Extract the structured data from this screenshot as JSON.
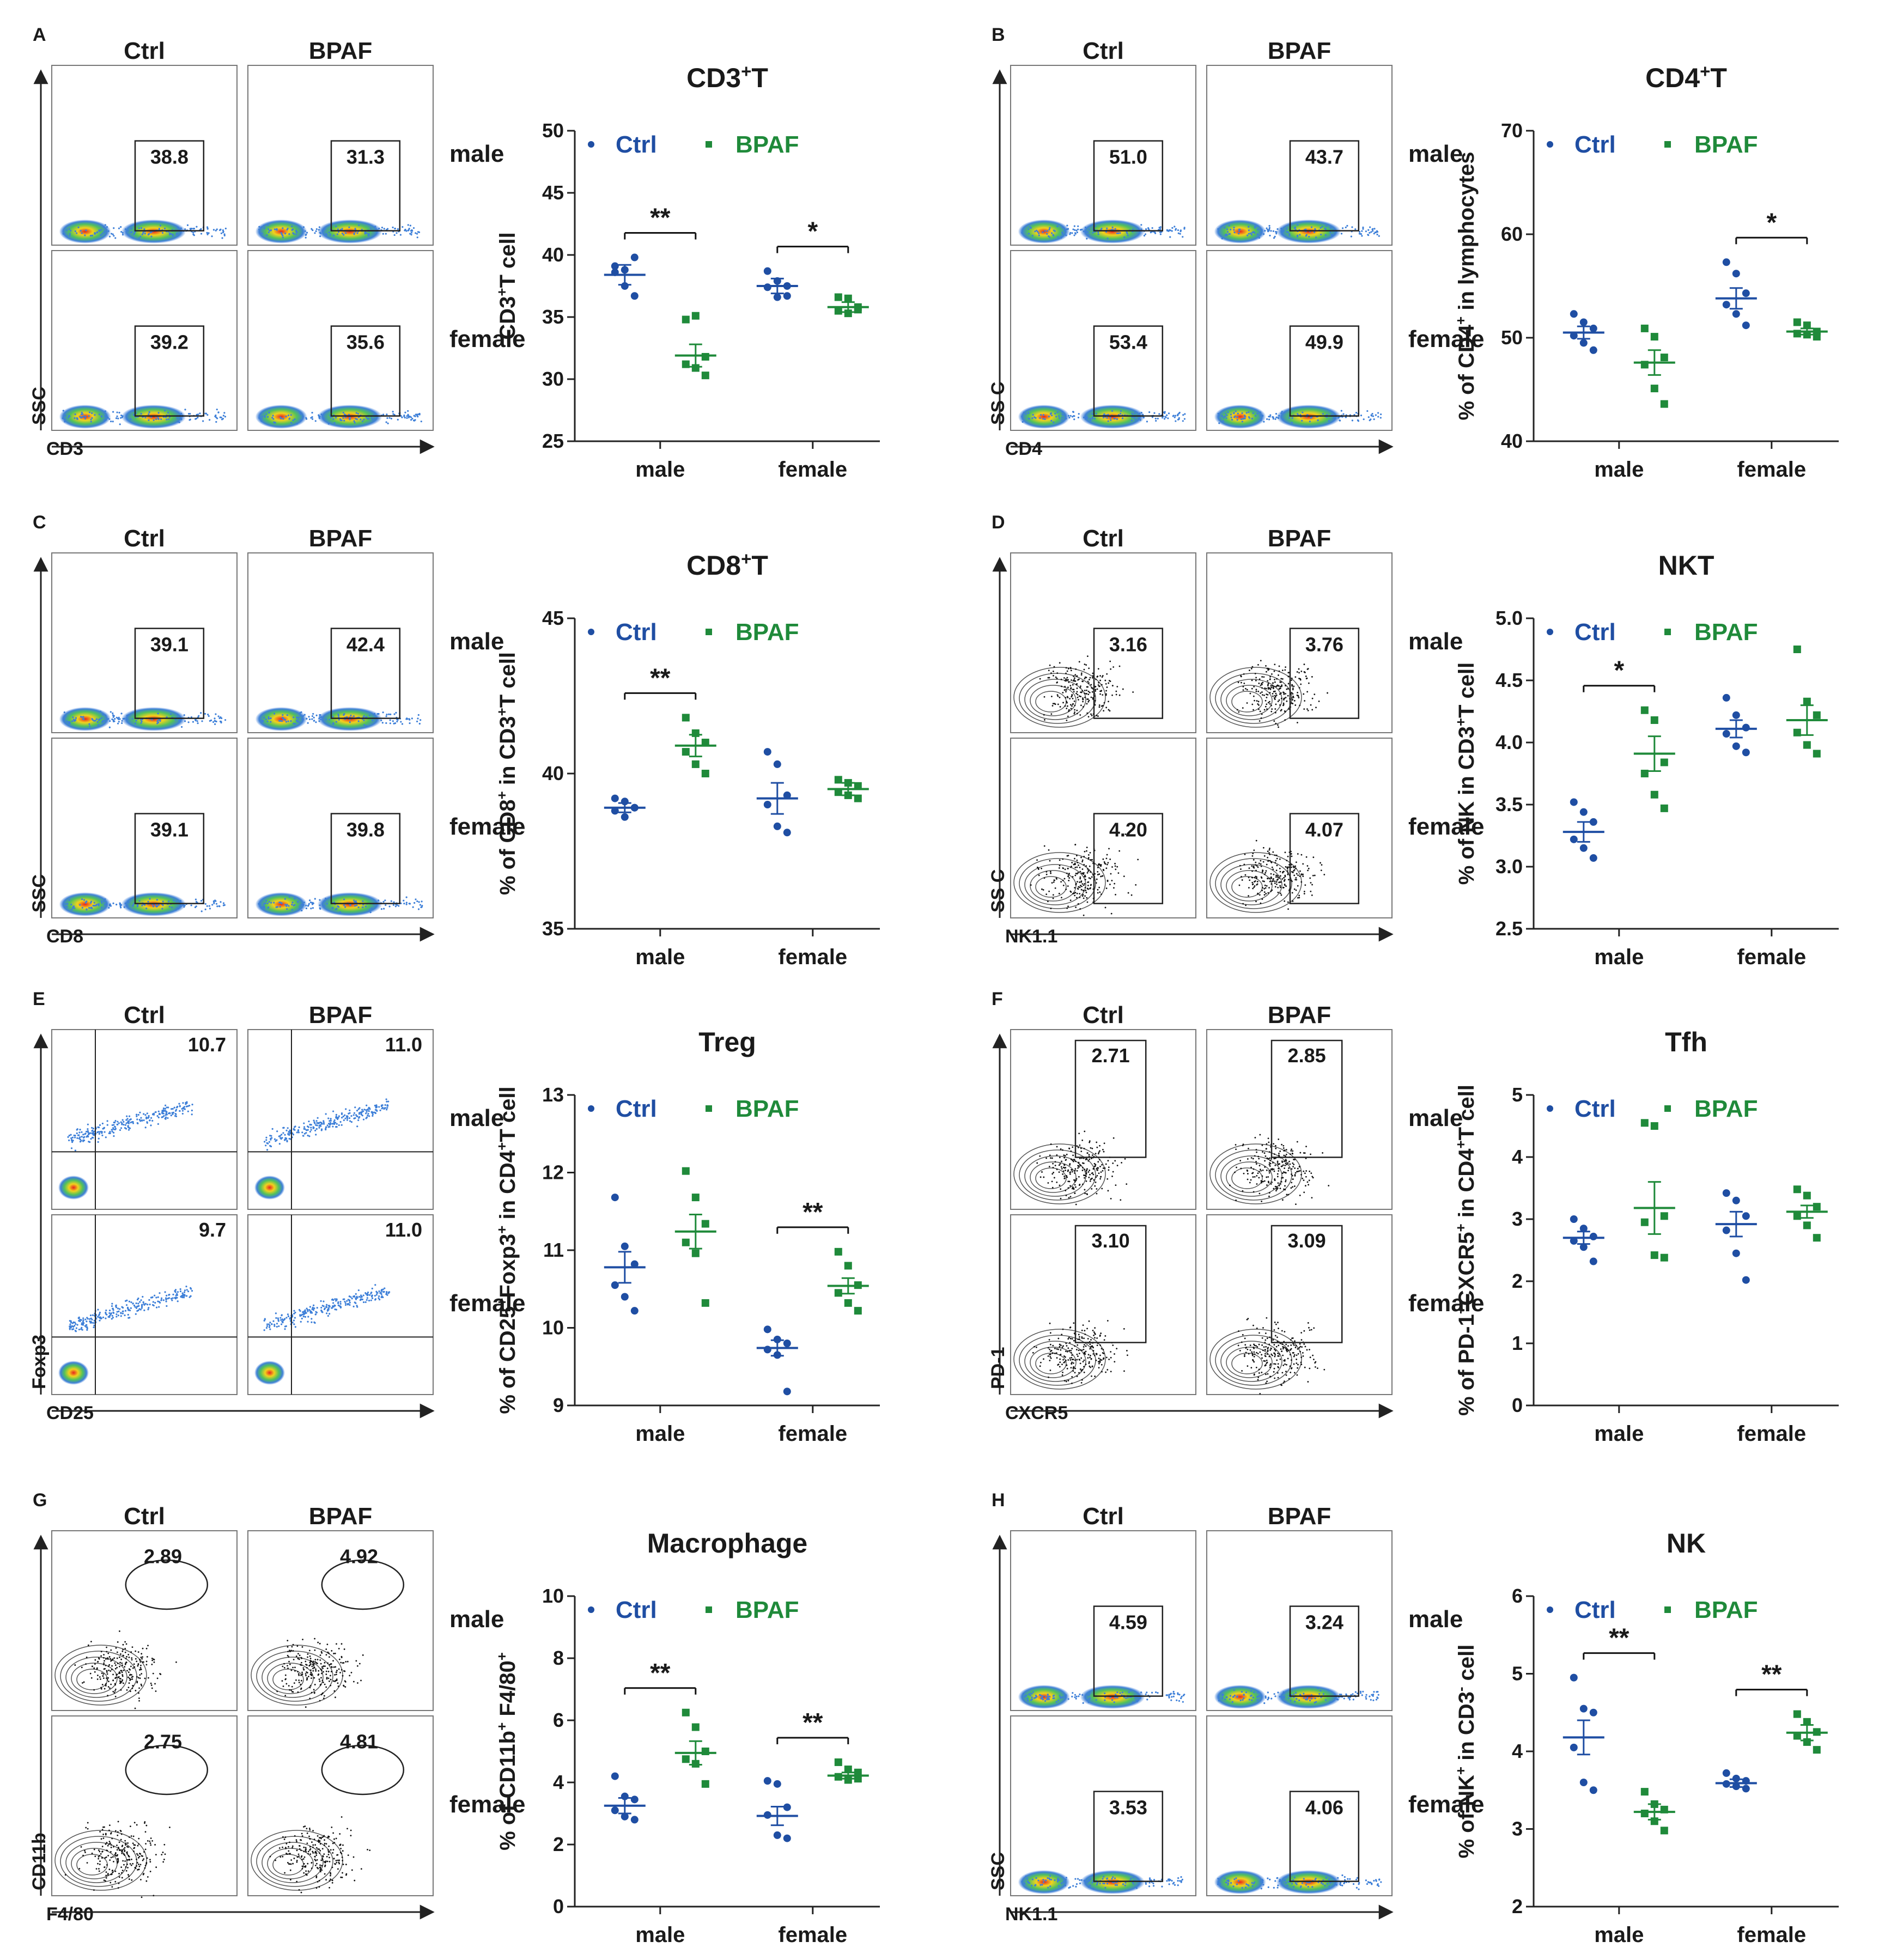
{
  "colors": {
    "ctrl": "#1f4ea3",
    "bpaf": "#1f8a3a",
    "axis": "#222222",
    "box": "#333333"
  },
  "legend": {
    "ctrl": "Ctrl",
    "bpaf": "BPAF"
  },
  "groups": [
    "male",
    "female"
  ],
  "panels": [
    {
      "letter": "A",
      "flow": {
        "col_labels": [
          "Ctrl",
          "BPAF"
        ],
        "row_labels": [
          "male",
          "female"
        ],
        "x_marker": "CD3",
        "y_marker": "SSC",
        "style": "dotplot",
        "gate": "rect",
        "values": [
          [
            "38.8",
            "31.3"
          ],
          [
            "39.2",
            "35.6"
          ]
        ]
      }
    },
    {
      "letter": "B",
      "flow": {
        "col_labels": [
          "Ctrl",
          "BPAF"
        ],
        "row_labels": [
          "male",
          "female"
        ],
        "x_marker": "CD4",
        "y_marker": "SS C",
        "style": "dotplot",
        "gate": "rect",
        "values": [
          [
            "51.0",
            "43.7"
          ],
          [
            "53.4",
            "49.9"
          ]
        ]
      }
    },
    {
      "letter": "C",
      "flow": {
        "col_labels": [
          "Ctrl",
          "BPAF"
        ],
        "row_labels": [
          "male",
          "female"
        ],
        "x_marker": "CD8",
        "y_marker": "SSC",
        "style": "dotplot",
        "gate": "rect",
        "values": [
          [
            "39.1",
            "42.4"
          ],
          [
            "39.1",
            "39.8"
          ]
        ]
      }
    },
    {
      "letter": "D",
      "flow": {
        "col_labels": [
          "Ctrl",
          "BPAF"
        ],
        "row_labels": [
          "male",
          "female"
        ],
        "x_marker": "NK1.1",
        "y_marker": "SS C",
        "style": "contour",
        "gate": "rect",
        "values": [
          [
            "3.16",
            "3.76"
          ],
          [
            "4.20",
            "4.07"
          ]
        ]
      }
    },
    {
      "letter": "E",
      "flow": {
        "col_labels": [
          "Ctrl",
          "BPAF"
        ],
        "row_labels": [
          "male",
          "female"
        ],
        "x_marker": "CD25",
        "y_marker": "Foxp3",
        "style": "quadrant",
        "gate": "quadrant",
        "values": [
          [
            "10.7",
            "11.0"
          ],
          [
            "9.7",
            "11.0"
          ]
        ]
      }
    },
    {
      "letter": "F",
      "flow": {
        "col_labels": [
          "Ctrl",
          "BPAF"
        ],
        "row_labels": [
          "male",
          "female"
        ],
        "x_marker": "CXCR5",
        "y_marker": "PD-1",
        "style": "contour",
        "gate": "tallrect",
        "values": [
          [
            "2.71",
            "2.85"
          ],
          [
            "3.10",
            "3.09"
          ]
        ]
      }
    },
    {
      "letter": "G",
      "flow": {
        "col_labels": [
          "Ctrl",
          "BPAF"
        ],
        "row_labels": [
          "male",
          "female"
        ],
        "x_marker": "F4/80",
        "y_marker": "CD11b",
        "style": "contour",
        "gate": "ellipse",
        "values": [
          [
            "2.89",
            "4.92"
          ],
          [
            "2.75",
            "4.81"
          ]
        ]
      }
    },
    {
      "letter": "H",
      "flow": {
        "col_labels": [
          "Ctrl",
          "BPAF"
        ],
        "row_labels": [
          "male",
          "female"
        ],
        "x_marker": "NK1.1",
        "y_marker": "SSC",
        "style": "dotplot",
        "gate": "rect",
        "values": [
          [
            "4.59",
            "3.24"
          ],
          [
            "3.53",
            "4.06"
          ]
        ]
      }
    }
  ],
  "chart_data": [
    {
      "type": "scatter",
      "panel": "A",
      "title": "CD3⁺T",
      "ylabel": "CD3⁺T cell",
      "xlabel": "",
      "ylim": [
        25,
        50
      ],
      "yticks": [
        25,
        30,
        35,
        40,
        45,
        50
      ],
      "categories": [
        "male",
        "female"
      ],
      "series": [
        {
          "name": "Ctrl",
          "mean": [
            38.4,
            37.5
          ],
          "sem": [
            0.8,
            0.6
          ],
          "points": [
            [
              39.1,
              38.8,
              39.8,
              38.6,
              37.5,
              36.7
            ],
            [
              38.7,
              37.9,
              37.5,
              37.4,
              36.6,
              36.7
            ]
          ]
        },
        {
          "name": "BPAF",
          "mean": [
            31.9,
            35.8
          ],
          "sem": [
            0.9,
            0.4
          ],
          "points": [
            [
              34.8,
              35.1,
              31.8,
              31.2,
              30.9,
              30.3
            ],
            [
              36.6,
              36.5,
              35.8,
              35.5,
              35.3,
              35.6
            ]
          ]
        }
      ],
      "annotations": [
        {
          "group": "male",
          "text": "**"
        },
        {
          "group": "female",
          "text": "*"
        }
      ]
    },
    {
      "type": "scatter",
      "panel": "B",
      "title": "CD4⁺T",
      "ylabel": "% of CD4⁺ in lymphocytes",
      "xlabel": "",
      "ylim": [
        40,
        70
      ],
      "yticks": [
        40,
        50,
        60,
        70
      ],
      "categories": [
        "male",
        "female"
      ],
      "series": [
        {
          "name": "Ctrl",
          "mean": [
            50.5,
            53.8
          ],
          "sem": [
            0.6,
            1.0
          ],
          "points": [
            [
              52.3,
              51.5,
              50.9,
              50.2,
              49.5,
              48.8
            ],
            [
              57.3,
              56.2,
              54.3,
              53.2,
              52.3,
              51.2
            ]
          ]
        },
        {
          "name": "BPAF",
          "mean": [
            47.6,
            50.6
          ],
          "sem": [
            1.2,
            0.3
          ],
          "points": [
            [
              50.9,
              50.1,
              48.1,
              47.4,
              45.1,
              43.6
            ],
            [
              51.5,
              51.2,
              50.6,
              50.4,
              50.3,
              50.1
            ]
          ]
        }
      ],
      "annotations": [
        {
          "group": "female",
          "text": "*"
        }
      ]
    },
    {
      "type": "scatter",
      "panel": "C",
      "title": "CD8⁺T",
      "ylabel": "% of CD8⁺ in CD3⁺T cell",
      "xlabel": "",
      "ylim": [
        35,
        45
      ],
      "yticks": [
        35,
        40,
        45
      ],
      "categories": [
        "male",
        "female"
      ],
      "series": [
        {
          "name": "Ctrl",
          "mean": [
            38.9,
            39.2
          ],
          "sem": [
            0.15,
            0.5
          ],
          "points": [
            [
              39.2,
              39.1,
              38.9,
              38.8,
              38.6,
              38.9
            ],
            [
              40.7,
              40.3,
              39.3,
              39.0,
              38.3,
              38.1
            ]
          ]
        },
        {
          "name": "BPAF",
          "mean": [
            40.9,
            39.5
          ],
          "sem": [
            0.35,
            0.2
          ],
          "points": [
            [
              41.8,
              41.3,
              41.0,
              40.7,
              40.3,
              40.0
            ],
            [
              39.8,
              39.7,
              39.6,
              39.4,
              39.3,
              39.2
            ]
          ]
        }
      ],
      "annotations": [
        {
          "group": "male",
          "text": "**"
        }
      ]
    },
    {
      "type": "scatter",
      "panel": "D",
      "title": "NKT",
      "ylabel": "% of NK in CD3⁺T cell",
      "xlabel": "",
      "ylim": [
        2.5,
        5.0
      ],
      "yticks": [
        2.5,
        3.0,
        3.5,
        4.0,
        4.5,
        5.0
      ],
      "categories": [
        "male",
        "female"
      ],
      "series": [
        {
          "name": "Ctrl",
          "mean": [
            3.28,
            4.11
          ],
          "sem": [
            0.08,
            0.07
          ],
          "points": [
            [
              3.52,
              3.44,
              3.36,
              3.22,
              3.15,
              3.07
            ],
            [
              4.36,
              4.22,
              4.12,
              4.07,
              3.97,
              3.92
            ]
          ]
        },
        {
          "name": "BPAF",
          "mean": [
            3.91,
            4.18
          ],
          "sem": [
            0.14,
            0.12
          ],
          "points": [
            [
              4.26,
              4.18,
              3.84,
              3.75,
              3.58,
              3.47
            ],
            [
              4.75,
              4.33,
              4.22,
              4.08,
              3.98,
              3.91
            ]
          ]
        }
      ],
      "annotations": [
        {
          "group": "male",
          "text": "*"
        }
      ]
    },
    {
      "type": "scatter",
      "panel": "E",
      "title": "Treg",
      "ylabel": "% of CD25⁺Foxp3⁺ in CD4⁺T cell",
      "xlabel": "",
      "ylim": [
        9,
        13
      ],
      "yticks": [
        9,
        10,
        11,
        12,
        13
      ],
      "categories": [
        "male",
        "female"
      ],
      "series": [
        {
          "name": "Ctrl",
          "mean": [
            10.78,
            9.74
          ],
          "sem": [
            0.2,
            0.1
          ],
          "points": [
            [
              11.68,
              11.05,
              10.82,
              10.55,
              10.4,
              10.22
            ],
            [
              9.98,
              9.85,
              9.8,
              9.72,
              9.65,
              9.18
            ]
          ]
        },
        {
          "name": "BPAF",
          "mean": [
            11.24,
            10.54
          ],
          "sem": [
            0.22,
            0.1
          ],
          "points": [
            [
              12.02,
              11.68,
              11.34,
              11.1,
              10.96,
              10.32
            ],
            [
              10.98,
              10.8,
              10.55,
              10.45,
              10.32,
              10.22
            ]
          ]
        }
      ],
      "annotations": [
        {
          "group": "female",
          "text": "**"
        }
      ]
    },
    {
      "type": "scatter",
      "panel": "F",
      "title": "Tfh",
      "ylabel": "% of PD-1⁺CXCR5⁺ in CD4⁺T cell",
      "xlabel": "",
      "ylim": [
        0,
        5
      ],
      "yticks": [
        0,
        1,
        2,
        3,
        4,
        5
      ],
      "categories": [
        "male",
        "female"
      ],
      "series": [
        {
          "name": "Ctrl",
          "mean": [
            2.7,
            2.92
          ],
          "sem": [
            0.1,
            0.2
          ],
          "points": [
            [
              3.0,
              2.85,
              2.72,
              2.65,
              2.55,
              2.32
            ],
            [
              3.42,
              3.3,
              3.05,
              2.82,
              2.45,
              2.02
            ]
          ]
        },
        {
          "name": "BPAF",
          "mean": [
            3.18,
            3.12
          ],
          "sem": [
            0.42,
            0.1
          ],
          "points": [
            [
              4.55,
              4.5,
              3.05,
              2.95,
              2.42,
              2.38
            ],
            [
              3.48,
              3.38,
              3.2,
              3.05,
              2.9,
              2.7
            ]
          ]
        }
      ],
      "annotations": []
    },
    {
      "type": "scatter",
      "panel": "G",
      "title": "Macrophage",
      "ylabel": "% of CD11b⁺ F4/80⁺",
      "xlabel": "",
      "ylim": [
        0,
        10
      ],
      "yticks": [
        0,
        2,
        4,
        6,
        8,
        10
      ],
      "categories": [
        "male",
        "female"
      ],
      "series": [
        {
          "name": "Ctrl",
          "mean": [
            3.25,
            2.92
          ],
          "sem": [
            0.25,
            0.3
          ],
          "points": [
            [
              4.2,
              3.55,
              3.45,
              3.1,
              2.9,
              2.8
            ],
            [
              4.05,
              3.95,
              3.2,
              2.95,
              2.3,
              2.2
            ]
          ]
        },
        {
          "name": "BPAF",
          "mean": [
            4.95,
            4.22
          ],
          "sem": [
            0.38,
            0.1
          ],
          "points": [
            [
              6.25,
              5.78,
              5.0,
              4.75,
              4.6,
              3.95
            ],
            [
              4.65,
              4.42,
              4.32,
              4.18,
              4.08,
              4.12
            ]
          ]
        }
      ],
      "annotations": [
        {
          "group": "male",
          "text": "**"
        },
        {
          "group": "female",
          "text": "**"
        }
      ]
    },
    {
      "type": "scatter",
      "panel": "H",
      "title": "NK",
      "ylabel": "% of NK⁺ in CD3⁻ cell",
      "xlabel": "",
      "ylim": [
        2,
        6
      ],
      "yticks": [
        2,
        3,
        4,
        5,
        6
      ],
      "categories": [
        "male",
        "female"
      ],
      "series": [
        {
          "name": "Ctrl",
          "mean": [
            4.18,
            3.59
          ],
          "sem": [
            0.22,
            0.05
          ],
          "points": [
            [
              4.95,
              4.55,
              4.5,
              4.05,
              3.6,
              3.5
            ],
            [
              3.72,
              3.65,
              3.62,
              3.58,
              3.55,
              3.52
            ]
          ]
        },
        {
          "name": "BPAF",
          "mean": [
            3.22,
            4.24
          ],
          "sem": [
            0.1,
            0.1
          ],
          "points": [
            [
              3.48,
              3.32,
              3.25,
              3.2,
              3.1,
              2.98
            ],
            [
              4.48,
              4.38,
              4.25,
              4.2,
              4.12,
              4.02
            ]
          ]
        }
      ],
      "annotations": [
        {
          "group": "male",
          "text": "**"
        },
        {
          "group": "female",
          "text": "**"
        }
      ]
    }
  ]
}
